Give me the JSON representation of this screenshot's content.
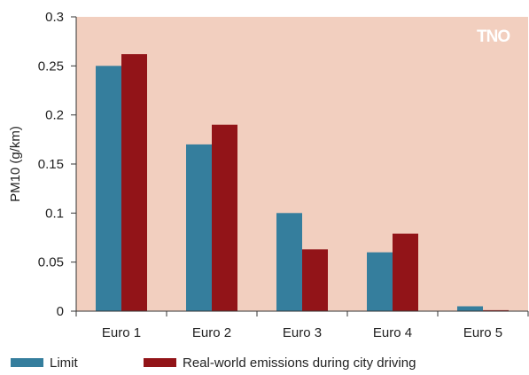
{
  "logo": "TNO",
  "chart_data": {
    "type": "bar",
    "categories": [
      "Euro 1",
      "Euro 2",
      "Euro 3",
      "Euro 4",
      "Euro 5"
    ],
    "series": [
      {
        "name": "Limit",
        "values": [
          0.25,
          0.17,
          0.1,
          0.06,
          0.005
        ],
        "color": "#357e9d"
      },
      {
        "name": "Real-world emissions during city driving",
        "values": [
          0.262,
          0.19,
          0.063,
          0.079,
          0.001
        ],
        "color": "#921418"
      }
    ],
    "ylabel": "PM10 (g/km)",
    "xlabel": "",
    "ylim": [
      0,
      0.3
    ],
    "yticks": [
      "0",
      "0.05",
      "0.1",
      "0.15",
      "0.2",
      "0.25",
      "0.3"
    ],
    "plot_background": "#f2cfbf",
    "grid": false,
    "legend_position": "bottom"
  }
}
